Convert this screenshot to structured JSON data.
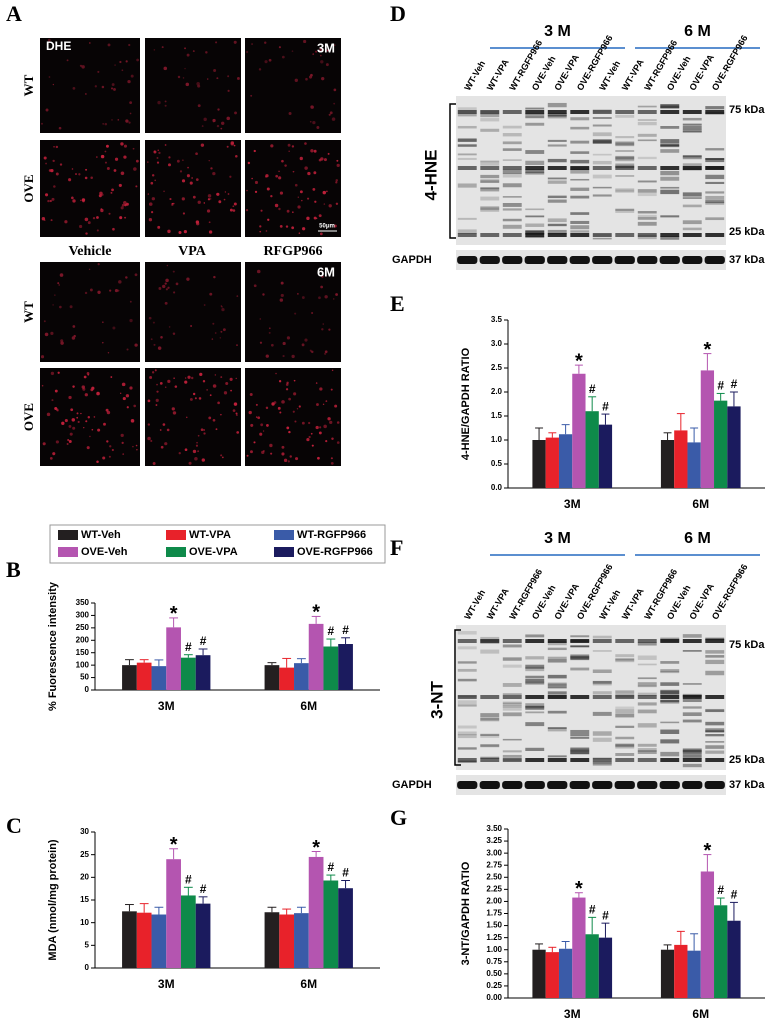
{
  "dhe": {
    "label": "A",
    "stain": "DHE",
    "rows": [
      "WT",
      "OVE"
    ],
    "columns": [
      "Vehicle",
      "VPA",
      "RFGP966"
    ],
    "ages": [
      "3M",
      "6M"
    ],
    "scale": "50μm"
  },
  "blots": [
    {
      "label": "D",
      "marker": "4-HNE",
      "groups": [
        "3 M",
        "6 M"
      ],
      "lanes": [
        "WT-Veh",
        "WT-VPA",
        "WT-RGFP966",
        "OVE-Veh",
        "OVE-VPA",
        "OVE-RGFP966",
        "WT-Veh",
        "WT-VPA",
        "WT-RGFP966",
        "OVE-Veh",
        "OVE-VPA",
        "OVE-RGFP966"
      ],
      "sizes": [
        "75 kDa",
        "25 kDa"
      ],
      "loading": "GAPDH",
      "loading_size": "37 kDa"
    },
    {
      "label": "F",
      "marker": "3-NT",
      "groups": [
        "3 M",
        "6 M"
      ],
      "lanes": [
        "WT-Veh",
        "WT-VPA",
        "WT-RGFP966",
        "OVE-Veh",
        "OVE-VPA",
        "OVE-RGFP966",
        "WT-Veh",
        "WT-VPA",
        "WT-RGFP966",
        "OVE-Veh",
        "OVE-VPA",
        "OVE-RGFP966"
      ],
      "sizes": [
        "75 kDa",
        "25 kDa"
      ],
      "loading": "GAPDH",
      "loading_size": "37 kDa"
    }
  ],
  "chart_data": [
    {
      "type": "bar",
      "label": "B",
      "ylabel": "% Fuorescence intensity",
      "categories": [
        "3M",
        "6M"
      ],
      "ylim": [
        0,
        350
      ],
      "yticks": [
        0,
        50,
        100,
        150,
        200,
        250,
        300,
        350
      ],
      "series": [
        {
          "name": "WT-Veh",
          "color": "#231f20",
          "values": [
            100,
            100
          ],
          "errors": [
            22,
            10
          ],
          "markers": [
            null,
            null
          ]
        },
        {
          "name": "WT-VPA",
          "color": "#e8222a",
          "values": [
            110,
            90
          ],
          "errors": [
            12,
            37
          ],
          "markers": [
            null,
            null
          ]
        },
        {
          "name": "WT-RGFP966",
          "color": "#3a5ba8",
          "values": [
            96,
            108
          ],
          "errors": [
            25,
            18
          ],
          "markers": [
            null,
            null
          ]
        },
        {
          "name": "OVE-Veh",
          "color": "#b455b0",
          "values": [
            252,
            266
          ],
          "errors": [
            38,
            30
          ],
          "markers": [
            "*",
            "*"
          ]
        },
        {
          "name": "OVE-VPA",
          "color": "#0e8a4a",
          "values": [
            130,
            175
          ],
          "errors": [
            12,
            30
          ],
          "markers": [
            "#",
            "#"
          ]
        },
        {
          "name": "OVE-RGFP966",
          "color": "#1b1b5e",
          "values": [
            140,
            185
          ],
          "errors": [
            25,
            25
          ],
          "markers": [
            "#",
            "#"
          ]
        }
      ]
    },
    {
      "type": "bar",
      "label": "C",
      "ylabel": "MDA (nmol/mg protein)",
      "categories": [
        "3M",
        "6M"
      ],
      "ylim": [
        0,
        30
      ],
      "yticks": [
        0,
        5,
        10,
        15,
        20,
        25,
        30
      ],
      "series": [
        {
          "color": "#231f20",
          "values": [
            12.5,
            12.3
          ],
          "errors": [
            1.5,
            1.1
          ],
          "markers": [
            null,
            null
          ]
        },
        {
          "color": "#e8222a",
          "values": [
            12.2,
            11.8
          ],
          "errors": [
            2,
            1.2
          ],
          "markers": [
            null,
            null
          ]
        },
        {
          "color": "#3a5ba8",
          "values": [
            11.8,
            12.1
          ],
          "errors": [
            1.6,
            1.3
          ],
          "markers": [
            null,
            null
          ]
        },
        {
          "color": "#b455b0",
          "values": [
            24,
            24.5
          ],
          "errors": [
            2.3,
            1.2
          ],
          "markers": [
            "*",
            "*"
          ]
        },
        {
          "color": "#0e8a4a",
          "values": [
            16,
            19.3
          ],
          "errors": [
            1.8,
            1.2
          ],
          "markers": [
            "#",
            "#"
          ]
        },
        {
          "color": "#1b1b5e",
          "values": [
            14.2,
            17.6
          ],
          "errors": [
            1.5,
            1.7
          ],
          "markers": [
            "#",
            "#"
          ]
        }
      ]
    },
    {
      "type": "bar",
      "label": "E",
      "ylabel": "4-HNE/GAPDH RATIO",
      "categories": [
        "3M",
        "6M"
      ],
      "ylim": [
        0,
        3.5
      ],
      "yticks": [
        {
          "value": 0,
          "label": "0.0"
        },
        0.5,
        {
          "value": 1,
          "label": "1.0"
        },
        1.5,
        {
          "value": 2,
          "label": "2.0"
        },
        2.5,
        {
          "value": 3,
          "label": "3.0"
        },
        3.5
      ],
      "series": [
        {
          "color": "#231f20",
          "values": [
            1.0,
            1.0
          ],
          "errors": [
            0.25,
            0.15
          ],
          "markers": [
            null,
            null
          ]
        },
        {
          "color": "#e8222a",
          "values": [
            1.05,
            1.2
          ],
          "errors": [
            0.1,
            0.35
          ],
          "markers": [
            null,
            null
          ]
        },
        {
          "color": "#3a5ba8",
          "values": [
            1.12,
            0.95
          ],
          "errors": [
            0.2,
            0.3
          ],
          "markers": [
            null,
            null
          ]
        },
        {
          "color": "#b455b0",
          "values": [
            2.38,
            2.45
          ],
          "errors": [
            0.18,
            0.35
          ],
          "markers": [
            "*",
            "*"
          ]
        },
        {
          "color": "#0e8a4a",
          "values": [
            1.6,
            1.82
          ],
          "errors": [
            0.3,
            0.15
          ],
          "markers": [
            "#",
            "#"
          ]
        },
        {
          "color": "#1b1b5e",
          "values": [
            1.32,
            1.7
          ],
          "errors": [
            0.22,
            0.3
          ],
          "markers": [
            "#",
            "#"
          ]
        }
      ]
    },
    {
      "type": "bar",
      "label": "G",
      "ylabel": "3-NT/GAPDH RATIO",
      "categories": [
        "3M",
        "6M"
      ],
      "ylim": [
        0,
        3.5
      ],
      "yticks": [
        {
          "value": 0,
          "label": "0.00"
        },
        {
          "value": 0.25,
          "label": "0.25"
        },
        {
          "value": 0.5,
          "label": "0.50"
        },
        {
          "value": 0.75,
          "label": "0.75"
        },
        {
          "value": 1,
          "label": "1.00"
        },
        {
          "value": 1.25,
          "label": "1.25"
        },
        {
          "value": 1.5,
          "label": "1.50"
        },
        {
          "value": 1.75,
          "label": "1.75"
        },
        {
          "value": 2,
          "label": "2.00"
        },
        {
          "value": 2.25,
          "label": "2.25"
        },
        {
          "value": 2.5,
          "label": "2.50"
        },
        {
          "value": 2.75,
          "label": "2.75"
        },
        {
          "value": 3,
          "label": "3.00"
        },
        {
          "value": 3.25,
          "label": "3.25"
        },
        {
          "value": 3.5,
          "label": "3.50"
        }
      ],
      "series": [
        {
          "color": "#231f20",
          "values": [
            1.0,
            1.0
          ],
          "errors": [
            0.12,
            0.1
          ],
          "markers": [
            null,
            null
          ]
        },
        {
          "color": "#e8222a",
          "values": [
            0.95,
            1.1
          ],
          "errors": [
            0.1,
            0.28
          ],
          "markers": [
            null,
            null
          ]
        },
        {
          "color": "#3a5ba8",
          "values": [
            1.02,
            0.98
          ],
          "errors": [
            0.15,
            0.35
          ],
          "markers": [
            null,
            null
          ]
        },
        {
          "color": "#b455b0",
          "values": [
            2.08,
            2.62
          ],
          "errors": [
            0.1,
            0.35
          ],
          "markers": [
            "*",
            "*"
          ]
        },
        {
          "color": "#0e8a4a",
          "values": [
            1.32,
            1.92
          ],
          "errors": [
            0.35,
            0.15
          ],
          "markers": [
            "#",
            "#"
          ]
        },
        {
          "color": "#1b1b5e",
          "values": [
            1.25,
            1.6
          ],
          "errors": [
            0.3,
            0.38
          ],
          "markers": [
            "#",
            "#"
          ]
        }
      ]
    }
  ]
}
